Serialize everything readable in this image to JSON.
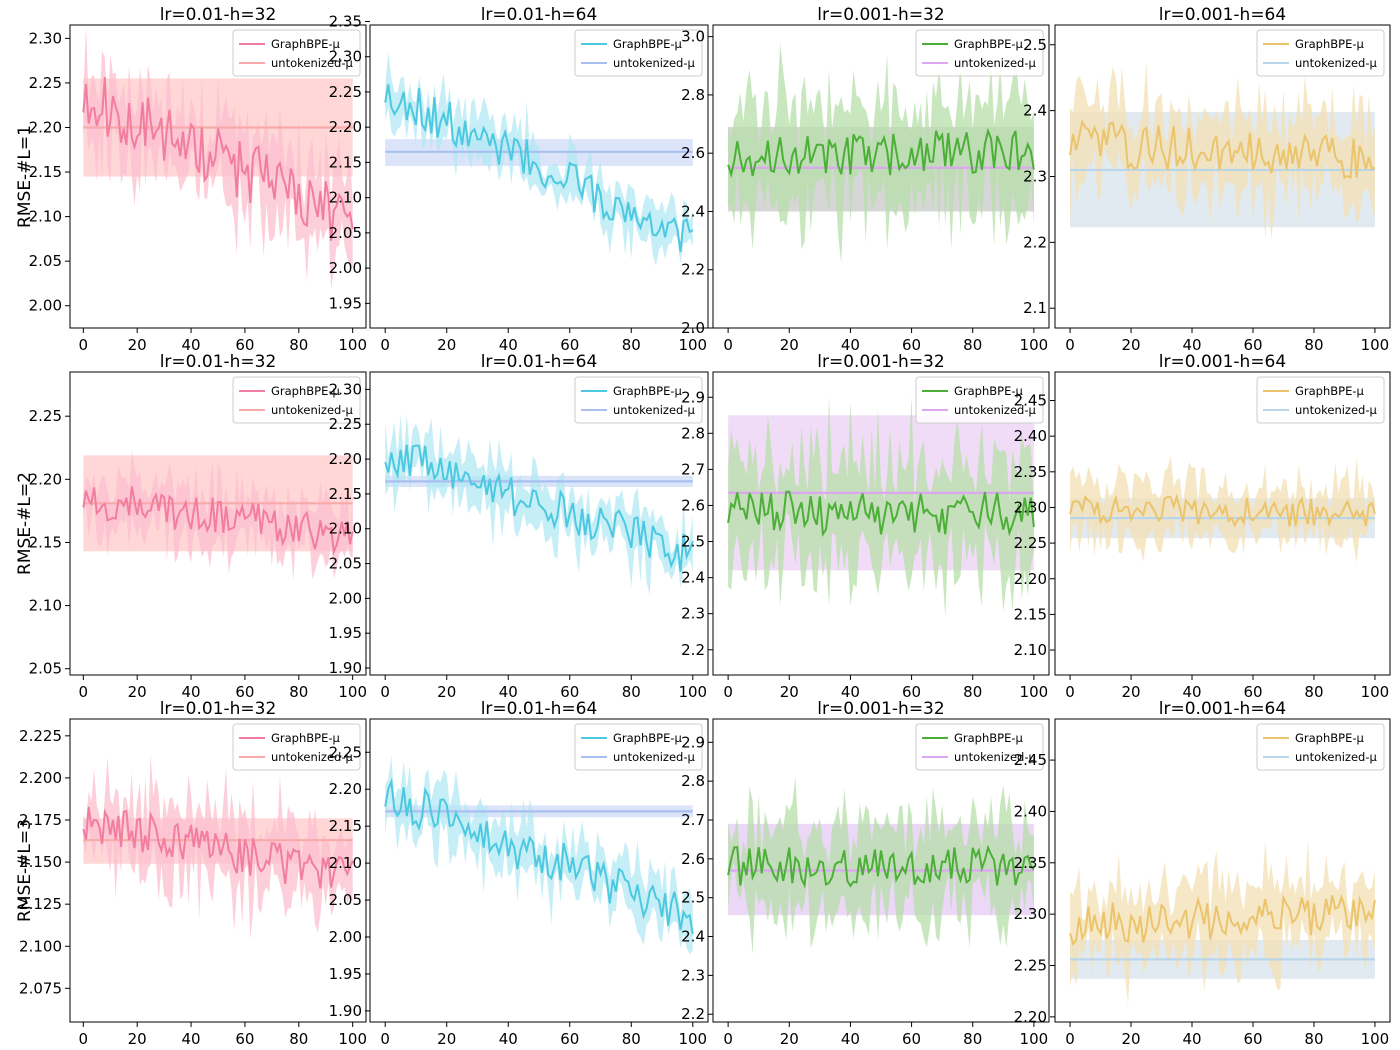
{
  "chart_data": {
    "type": "line",
    "figure": "GraphBPE vs untokenized RMSE grid (3 rows x 4 columns)",
    "x": {
      "min": 0,
      "max": 100,
      "step": 1,
      "ticks": [
        0,
        20,
        40,
        60,
        80,
        100
      ]
    },
    "series_names": [
      "GraphBPE-μ",
      "untokenized-μ"
    ],
    "rows": [
      {
        "label": "RMSE-#L=1"
      },
      {
        "label": "RMSE-#L=2"
      },
      {
        "label": "RMSE-#L=3"
      }
    ],
    "panels": [
      {
        "title": "lr=0.01-h=32",
        "row": 0,
        "col": 0,
        "ylim": [
          1.975,
          2.315
        ],
        "yticks": [
          "2.00",
          "2.05",
          "2.10",
          "2.15",
          "2.20",
          "2.25",
          "2.30"
        ],
        "colors": {
          "line": "#f17ea0",
          "band": "#fcbfcf",
          "base": "#f7aaa9",
          "base_band": "#ffd0d0"
        },
        "graphbpe": {
          "start": 2.235,
          "end": 2.095,
          "noise": 0.035,
          "band": 0.05,
          "seed": 11
        },
        "untokenized": {
          "mean": 2.2,
          "low": 2.145,
          "high": 2.255
        }
      },
      {
        "title": "lr=0.01-h=64",
        "row": 0,
        "col": 1,
        "ylim": [
          1.915,
          2.345
        ],
        "yticks": [
          "1.95",
          "2.00",
          "2.05",
          "2.10",
          "2.15",
          "2.20",
          "2.25",
          "2.30",
          "2.35"
        ],
        "colors": {
          "line": "#4cc9e0",
          "band": "#b2e8f3",
          "base": "#a9bfef",
          "base_band": "#d5dff8"
        },
        "graphbpe": {
          "start": 2.25,
          "end": 2.04,
          "noise": 0.03,
          "band": 0.035,
          "seed": 23
        },
        "untokenized": {
          "mean": 2.165,
          "low": 2.145,
          "high": 2.183
        }
      },
      {
        "title": "lr=0.001-h=32",
        "row": 0,
        "col": 2,
        "ylim": [
          2.0,
          3.04
        ],
        "yticks": [
          "2.0",
          "2.2",
          "2.4",
          "2.6",
          "2.8",
          "3.0"
        ],
        "colors": {
          "line": "#4caf38",
          "band": "#b5dfa8",
          "base": "#dba7ee",
          "base_band": "#cfcfcf"
        },
        "graphbpe": {
          "start": 2.6,
          "end": 2.6,
          "noise": 0.08,
          "band": 0.2,
          "seed": 37
        },
        "untokenized": {
          "mean": 2.55,
          "low": 2.4,
          "high": 2.69
        }
      },
      {
        "title": "lr=0.001-h=64",
        "row": 0,
        "col": 3,
        "ylim": [
          2.07,
          2.53
        ],
        "yticks": [
          "2.1",
          "2.2",
          "2.3",
          "2.4",
          "2.5"
        ],
        "colors": {
          "line": "#ebc46c",
          "band": "#f3e0b4",
          "base": "#b9d5ea",
          "base_band": "#dde6ee"
        },
        "graphbpe": {
          "start": 2.35,
          "end": 2.33,
          "noise": 0.035,
          "band": 0.07,
          "seed": 41
        },
        "untokenized": {
          "mean": 2.31,
          "low": 2.223,
          "high": 2.398
        }
      },
      {
        "title": "lr=0.01-h=32",
        "row": 1,
        "col": 0,
        "ylim": [
          2.045,
          2.285
        ],
        "yticks": [
          "2.05",
          "2.10",
          "2.15",
          "2.20",
          "2.25"
        ],
        "colors": {
          "line": "#f17ea0",
          "band": "#fcbfcf",
          "base": "#f7aaa9",
          "base_band": "#ffd0d0"
        },
        "graphbpe": {
          "start": 2.185,
          "end": 2.155,
          "noise": 0.015,
          "band": 0.025,
          "seed": 53
        },
        "untokenized": {
          "mean": 2.181,
          "low": 2.143,
          "high": 2.219
        }
      },
      {
        "title": "lr=0.01-h=64",
        "row": 1,
        "col": 1,
        "ylim": [
          1.89,
          2.325
        ],
        "yticks": [
          "1.90",
          "1.95",
          "2.00",
          "2.05",
          "2.10",
          "2.15",
          "2.20",
          "2.25",
          "2.30"
        ],
        "colors": {
          "line": "#4cc9e0",
          "band": "#b2e8f3",
          "base": "#a9bfef",
          "base_band": "#d5dff8"
        },
        "graphbpe": {
          "start": 2.21,
          "end": 2.06,
          "noise": 0.03,
          "band": 0.04,
          "seed": 61
        },
        "untokenized": {
          "mean": 2.168,
          "low": 2.16,
          "high": 2.176
        }
      },
      {
        "title": "lr=0.001-h=32",
        "row": 1,
        "col": 2,
        "ylim": [
          2.13,
          2.97
        ],
        "yticks": [
          "2.2",
          "2.3",
          "2.4",
          "2.5",
          "2.6",
          "2.7",
          "2.8",
          "2.9"
        ],
        "colors": {
          "line": "#4caf38",
          "band": "#b5dfa8",
          "base": "#dba7ee",
          "base_band": "#efd6f6"
        },
        "graphbpe": {
          "start": 2.58,
          "end": 2.58,
          "noise": 0.06,
          "band": 0.18,
          "seed": 71
        },
        "untokenized": {
          "mean": 2.635,
          "low": 2.42,
          "high": 2.85
        }
      },
      {
        "title": "lr=0.001-h=64",
        "row": 1,
        "col": 3,
        "ylim": [
          2.065,
          2.49
        ],
        "yticks": [
          "2.10",
          "2.15",
          "2.20",
          "2.25",
          "2.30",
          "2.35",
          "2.40",
          "2.45"
        ],
        "colors": {
          "line": "#ebc46c",
          "band": "#f3e0b4",
          "base": "#b9d5ea",
          "base_band": "#dde6ee"
        },
        "graphbpe": {
          "start": 2.3,
          "end": 2.29,
          "noise": 0.02,
          "band": 0.045,
          "seed": 83
        },
        "untokenized": {
          "mean": 2.285,
          "low": 2.257,
          "high": 2.313
        }
      },
      {
        "title": "lr=0.01-h=32",
        "row": 2,
        "col": 0,
        "ylim": [
          2.055,
          2.235
        ],
        "yticks": [
          "2.075",
          "2.100",
          "2.125",
          "2.150",
          "2.175",
          "2.200",
          "2.225"
        ],
        "colors": {
          "line": "#f17ea0",
          "band": "#fcbfcf",
          "base": "#f7aaa9",
          "base_band": "#ffd0d0"
        },
        "graphbpe": {
          "start": 2.175,
          "end": 2.14,
          "noise": 0.012,
          "band": 0.025,
          "seed": 97
        },
        "untokenized": {
          "mean": 2.163,
          "low": 2.149,
          "high": 2.176
        }
      },
      {
        "title": "lr=0.01-h=64",
        "row": 2,
        "col": 1,
        "ylim": [
          1.885,
          2.295
        ],
        "yticks": [
          "1.90",
          "1.95",
          "2.00",
          "2.05",
          "2.10",
          "2.15",
          "2.20",
          "2.25"
        ],
        "colors": {
          "line": "#4cc9e0",
          "band": "#b2e8f3",
          "base": "#a9bfef",
          "base_band": "#d5dff8"
        },
        "graphbpe": {
          "start": 2.19,
          "end": 2.03,
          "noise": 0.03,
          "band": 0.04,
          "seed": 101
        },
        "untokenized": {
          "mean": 2.17,
          "low": 2.162,
          "high": 2.178
        }
      },
      {
        "title": "lr=0.001-h=32",
        "row": 2,
        "col": 2,
        "ylim": [
          2.18,
          2.96
        ],
        "yticks": [
          "2.2",
          "2.3",
          "2.4",
          "2.5",
          "2.6",
          "2.7",
          "2.8",
          "2.9"
        ],
        "colors": {
          "line": "#4caf38",
          "band": "#b5dfa8",
          "base": "#dba7ee",
          "base_band": "#e7d0f4"
        },
        "graphbpe": {
          "start": 2.58,
          "end": 2.58,
          "noise": 0.05,
          "band": 0.13,
          "seed": 113
        },
        "untokenized": {
          "mean": 2.57,
          "low": 2.455,
          "high": 2.69
        }
      },
      {
        "title": "lr=0.001-h=64",
        "row": 2,
        "col": 3,
        "ylim": [
          2.195,
          2.49
        ],
        "yticks": [
          "2.20",
          "2.25",
          "2.30",
          "2.35",
          "2.40",
          "2.45"
        ],
        "colors": {
          "line": "#ebc46c",
          "band": "#f3e0b4",
          "base": "#b9d5ea",
          "base_band": "#dde6ee"
        },
        "graphbpe": {
          "start": 2.29,
          "end": 2.3,
          "noise": 0.02,
          "band": 0.04,
          "seed": 127
        },
        "untokenized": {
          "mean": 2.256,
          "low": 2.237,
          "high": 2.275
        }
      }
    ]
  }
}
